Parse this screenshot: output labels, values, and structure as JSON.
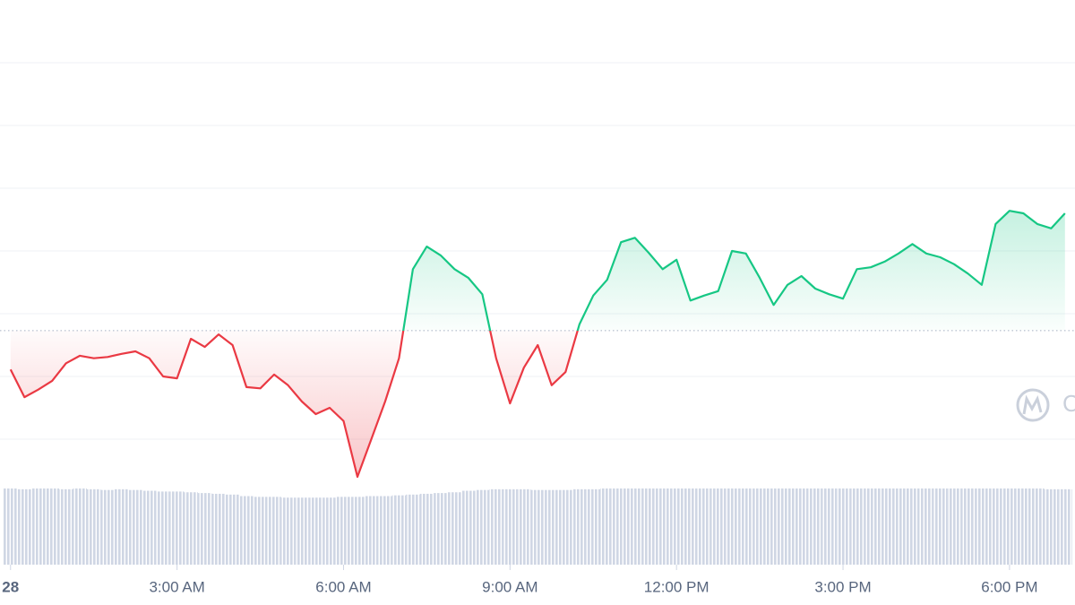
{
  "chart_data": {
    "type": "line",
    "x": [
      0,
      0.25,
      0.5,
      0.75,
      1,
      1.25,
      1.5,
      1.75,
      2,
      2.25,
      2.5,
      2.75,
      3,
      3.25,
      3.5,
      3.75,
      4,
      4.25,
      4.5,
      4.75,
      5,
      5.25,
      5.5,
      5.75,
      6,
      6.25,
      6.5,
      6.75,
      7,
      7.25,
      7.5,
      7.75,
      8,
      8.25,
      8.5,
      8.75,
      9,
      9.25,
      9.5,
      9.75,
      10,
      10.25,
      10.5,
      10.75,
      11,
      11.25,
      11.5,
      11.75,
      12,
      12.25,
      12.5,
      12.75,
      13,
      13.25,
      13.5,
      13.75,
      14,
      14.25,
      14.5,
      14.75,
      15,
      15.25,
      15.5,
      15.75,
      16,
      16.25,
      16.5,
      16.75,
      17,
      17.25,
      17.5,
      17.75,
      18,
      18.25,
      18.5,
      18.75,
      19
    ],
    "values": [
      11.1,
      6.7,
      7.9,
      9.3,
      12.1,
      13.3,
      12.9,
      13.1,
      13.6,
      14,
      12.9,
      10,
      9.7,
      16,
      14.7,
      16.7,
      15,
      8.3,
      8.1,
      10.3,
      8.6,
      6,
      4,
      5,
      2.9,
      -6,
      0,
      6,
      12.9,
      27.1,
      30.7,
      29.3,
      27.1,
      25.7,
      23.1,
      12.9,
      5.7,
      11.4,
      15,
      8.6,
      10.7,
      18.3,
      22.9,
      25.4,
      31.4,
      32.1,
      29.7,
      27.1,
      28.6,
      22.1,
      22.9,
      23.6,
      30,
      29.6,
      25.7,
      21.4,
      24.6,
      26,
      24,
      23.1,
      22.4,
      27.1,
      27.4,
      28.3,
      29.6,
      31.1,
      29.6,
      29,
      27.9,
      26.4,
      24.6,
      34.3,
      36.4,
      36,
      34.3,
      33.6,
      36
    ],
    "up_color": "#16c784",
    "down_color": "#ea3943",
    "baseline": 17.3,
    "xlim": [
      -0.19,
      19.18
    ],
    "ylim": [
      -7,
      70
    ],
    "xticks": [
      {
        "value": 0,
        "label": "28"
      },
      {
        "value": 3,
        "label": "3:00 AM"
      },
      {
        "value": 6,
        "label": "6:00 AM"
      },
      {
        "value": 9,
        "label": "9:00 AM"
      },
      {
        "value": 12,
        "label": "12:00 PM"
      },
      {
        "value": 15,
        "label": "3:00 PM"
      },
      {
        "value": 18,
        "label": "6:00 PM"
      }
    ],
    "yticks": [
      0,
      10,
      20,
      30,
      40,
      50,
      60
    ],
    "grid": true,
    "watermark": "CoinMarketCap",
    "volume": {
      "values": [
        100,
        99,
        100,
        100,
        99,
        100,
        99,
        98,
        99,
        98,
        97,
        96,
        96,
        95,
        94,
        93,
        92,
        90,
        89,
        89,
        88,
        88,
        88,
        88,
        89,
        89,
        90,
        90,
        91,
        92,
        93,
        94,
        95,
        97,
        98,
        99,
        99,
        99,
        98,
        98,
        98,
        99,
        99,
        100,
        100,
        100,
        100,
        100,
        100,
        100,
        100,
        100,
        100,
        100,
        100,
        100,
        100,
        100,
        100,
        100,
        100,
        100,
        100,
        100,
        100,
        100,
        100,
        100,
        100,
        100,
        100,
        100,
        100,
        100,
        100,
        99,
        99
      ],
      "ylim": [
        0,
        100
      ],
      "color": "#cfd6e4"
    }
  }
}
